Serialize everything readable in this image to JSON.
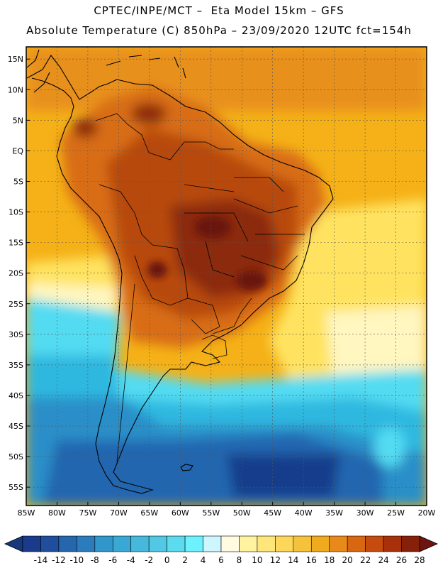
{
  "header": {
    "line1": "CPTEC/INPE/MCT –  Eta Model 15km – GFS",
    "line2": "Absolute Temperature (C) 850hPa – 23/09/2020 12UTC fct=154h"
  },
  "map": {
    "lon_range": [
      -85,
      -20
    ],
    "lat_range": [
      -58,
      17
    ],
    "grid": true,
    "lon_ticks": [
      {
        "value": -85,
        "label": "85W"
      },
      {
        "value": -80,
        "label": "80W"
      },
      {
        "value": -75,
        "label": "75W"
      },
      {
        "value": -70,
        "label": "70W"
      },
      {
        "value": -65,
        "label": "65W"
      },
      {
        "value": -60,
        "label": "60W"
      },
      {
        "value": -55,
        "label": "55W"
      },
      {
        "value": -50,
        "label": "50W"
      },
      {
        "value": -45,
        "label": "45W"
      },
      {
        "value": -40,
        "label": "40W"
      },
      {
        "value": -35,
        "label": "35W"
      },
      {
        "value": -30,
        "label": "30W"
      },
      {
        "value": -25,
        "label": "25W"
      },
      {
        "value": -20,
        "label": "20W"
      }
    ],
    "lat_ticks": [
      {
        "value": 15,
        "label": "15N"
      },
      {
        "value": 10,
        "label": "10N"
      },
      {
        "value": 5,
        "label": "5N"
      },
      {
        "value": 0,
        "label": "EQ"
      },
      {
        "value": -5,
        "label": "5S"
      },
      {
        "value": -10,
        "label": "10S"
      },
      {
        "value": -15,
        "label": "15S"
      },
      {
        "value": -20,
        "label": "20S"
      },
      {
        "value": -25,
        "label": "25S"
      },
      {
        "value": -30,
        "label": "30S"
      },
      {
        "value": -35,
        "label": "35S"
      },
      {
        "value": -40,
        "label": "40S"
      },
      {
        "value": -45,
        "label": "45S"
      },
      {
        "value": -50,
        "label": "50S"
      },
      {
        "value": -55,
        "label": "55S"
      }
    ],
    "colors": {
      "ocean_warm": "#f5b117",
      "ocean_hot": "#e8901a",
      "land_hot": "#d86d12",
      "land_very_hot": "#b84a0c",
      "land_core": "#8c2a08",
      "land_max": "#6a1808",
      "yellow": "#ffe360",
      "pale": "#fff6c0",
      "cyan": "#52dbf2",
      "light_blue": "#2fb8e0",
      "mid_blue": "#2a8fc8",
      "blue": "#2166b0",
      "deep_blue": "#173d8c"
    }
  },
  "colorbar": {
    "labels": [
      "-14",
      "-12",
      "-10",
      "-8",
      "-6",
      "-4",
      "-2",
      "0",
      "2",
      "4",
      "6",
      "8",
      "10",
      "12",
      "14",
      "16",
      "18",
      "20",
      "22",
      "24",
      "26",
      "28"
    ],
    "colors": [
      "#1a3b8c",
      "#1f4e9c",
      "#2566ad",
      "#2b7cbc",
      "#3196c9",
      "#3aa8d4",
      "#45b8dc",
      "#52c8e4",
      "#5cdaee",
      "#6cf2ff",
      "#cdf6ff",
      "#fffae0",
      "#fff3a0",
      "#ffe67a",
      "#fcd75a",
      "#f5c23c",
      "#f0aa1e",
      "#e8891a",
      "#d86712",
      "#c54c0e",
      "#a8300a",
      "#862008"
    ],
    "under_color": "#18387e",
    "over_color": "#6e1410"
  }
}
